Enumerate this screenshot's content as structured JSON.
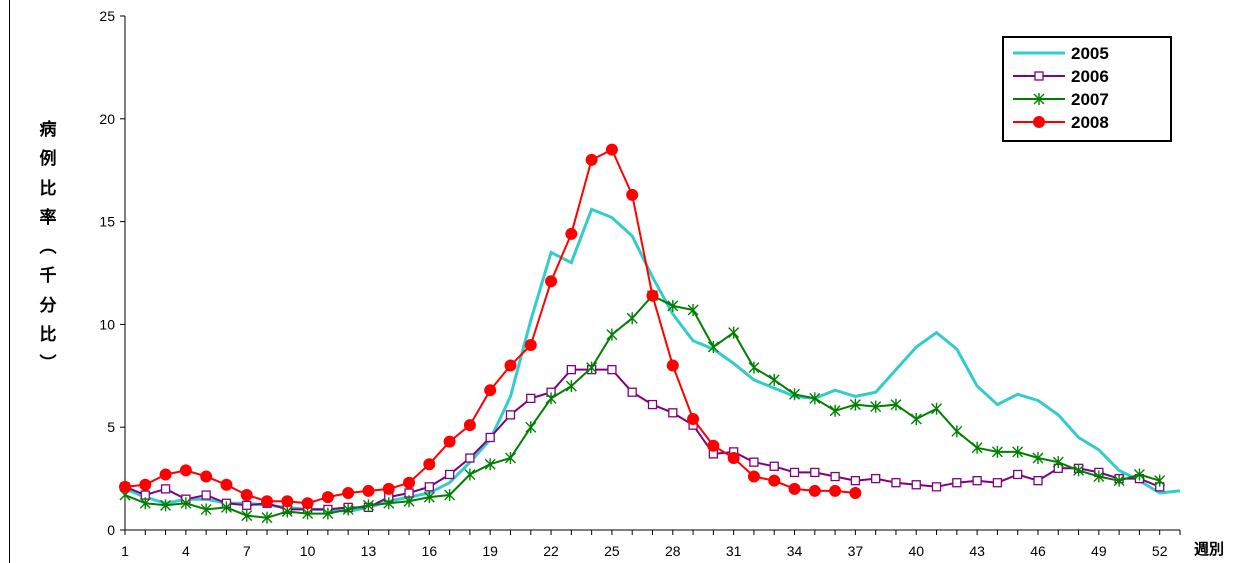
{
  "chart_data": {
    "type": "line",
    "title": "",
    "ylabel_chars": [
      "病",
      "例",
      "比",
      "率",
      "︵",
      "千",
      "分",
      "比",
      "︶"
    ],
    "xlabel": "週別",
    "ylim": [
      0,
      25
    ],
    "yticks": [
      0,
      5,
      10,
      15,
      20,
      25
    ],
    "xlim": [
      1,
      53
    ],
    "xticks": [
      1,
      4,
      7,
      10,
      13,
      16,
      19,
      22,
      25,
      28,
      31,
      34,
      37,
      40,
      43,
      46,
      49,
      52
    ],
    "legend_position": "top-right",
    "series": [
      {
        "name": "2005",
        "color": "#33cccc",
        "marker": "none",
        "x": [
          1,
          2,
          3,
          4,
          5,
          6,
          7,
          8,
          9,
          10,
          11,
          12,
          13,
          14,
          15,
          16,
          17,
          18,
          19,
          20,
          21,
          22,
          23,
          24,
          25,
          26,
          27,
          28,
          29,
          30,
          31,
          32,
          33,
          34,
          35,
          36,
          37,
          38,
          39,
          40,
          41,
          42,
          43,
          44,
          45,
          46,
          47,
          48,
          49,
          50,
          51,
          52,
          53
        ],
        "y": [
          2.0,
          1.6,
          1.3,
          1.5,
          1.5,
          1.3,
          1.3,
          1.2,
          1.1,
          1.0,
          1.0,
          0.9,
          1.1,
          1.4,
          1.6,
          1.8,
          2.3,
          3.3,
          4.4,
          6.5,
          10.2,
          13.5,
          13.0,
          15.6,
          15.2,
          14.3,
          12.3,
          10.5,
          9.2,
          8.8,
          8.1,
          7.3,
          6.9,
          6.5,
          6.4,
          6.8,
          6.5,
          6.7,
          7.8,
          8.9,
          9.6,
          8.8,
          7.0,
          6.1,
          6.6,
          6.3,
          5.6,
          4.5,
          3.9,
          2.9,
          2.4,
          1.8,
          1.9
        ]
      },
      {
        "name": "2006",
        "color": "#800080",
        "marker": "square",
        "x": [
          1,
          2,
          3,
          4,
          5,
          6,
          7,
          8,
          9,
          10,
          11,
          12,
          13,
          14,
          15,
          16,
          17,
          18,
          19,
          20,
          21,
          22,
          23,
          24,
          25,
          26,
          27,
          28,
          29,
          30,
          31,
          32,
          33,
          34,
          35,
          36,
          37,
          38,
          39,
          40,
          41,
          42,
          43,
          44,
          45,
          46,
          47,
          48,
          49,
          50,
          51,
          52
        ],
        "y": [
          2.1,
          1.7,
          2.0,
          1.5,
          1.7,
          1.3,
          1.2,
          1.3,
          1.0,
          1.0,
          1.0,
          1.1,
          1.1,
          1.6,
          1.8,
          2.1,
          2.7,
          3.5,
          4.5,
          5.6,
          6.4,
          6.7,
          7.8,
          7.8,
          7.8,
          6.7,
          6.1,
          5.7,
          5.1,
          3.7,
          3.8,
          3.3,
          3.1,
          2.8,
          2.8,
          2.6,
          2.4,
          2.5,
          2.3,
          2.2,
          2.1,
          2.3,
          2.4,
          2.3,
          2.7,
          2.4,
          3.0,
          3.0,
          2.8,
          2.5,
          2.5,
          2.1
        ]
      },
      {
        "name": "2007",
        "color": "#008000",
        "marker": "star",
        "x": [
          1,
          2,
          3,
          4,
          5,
          6,
          7,
          8,
          9,
          10,
          11,
          12,
          13,
          14,
          15,
          16,
          17,
          18,
          19,
          20,
          21,
          22,
          23,
          24,
          25,
          26,
          27,
          28,
          29,
          30,
          31,
          32,
          33,
          34,
          35,
          36,
          37,
          38,
          39,
          40,
          41,
          42,
          43,
          44,
          45,
          46,
          47,
          48,
          49,
          50,
          51,
          52
        ],
        "y": [
          1.7,
          1.3,
          1.2,
          1.3,
          1.0,
          1.1,
          0.7,
          0.6,
          0.9,
          0.8,
          0.8,
          1.0,
          1.2,
          1.3,
          1.4,
          1.6,
          1.7,
          2.7,
          3.2,
          3.5,
          5.0,
          6.4,
          7.0,
          7.9,
          9.5,
          10.3,
          11.4,
          10.9,
          10.7,
          8.9,
          9.6,
          7.9,
          7.3,
          6.6,
          6.4,
          5.8,
          6.1,
          6.0,
          6.1,
          5.4,
          5.9,
          4.8,
          4.0,
          3.8,
          3.8,
          3.5,
          3.3,
          2.9,
          2.6,
          2.4,
          2.7,
          2.4
        ]
      },
      {
        "name": "2008",
        "color": "#ff0000",
        "marker": "circle",
        "x": [
          1,
          2,
          3,
          4,
          5,
          6,
          7,
          8,
          9,
          10,
          11,
          12,
          13,
          14,
          15,
          16,
          17,
          18,
          19,
          20,
          21,
          22,
          23,
          24,
          25,
          26,
          27,
          28,
          29,
          30,
          31,
          32,
          33,
          34,
          35,
          36,
          37
        ],
        "y": [
          2.1,
          2.2,
          2.7,
          2.9,
          2.6,
          2.2,
          1.7,
          1.4,
          1.4,
          1.3,
          1.6,
          1.8,
          1.9,
          2.0,
          2.3,
          3.2,
          4.3,
          5.1,
          6.8,
          8.0,
          9.0,
          12.1,
          14.4,
          18.0,
          18.5,
          16.3,
          11.4,
          8.0,
          5.4,
          4.1,
          3.5,
          2.6,
          2.4,
          2.0,
          1.9,
          1.9,
          1.8
        ]
      }
    ]
  }
}
